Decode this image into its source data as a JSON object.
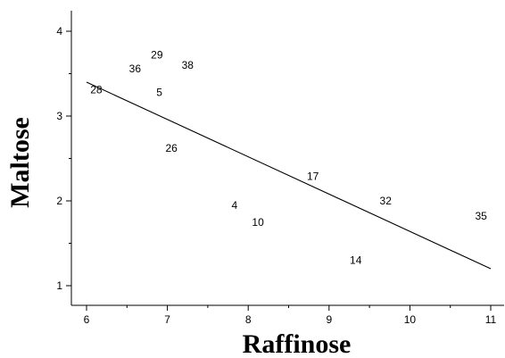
{
  "chart_data": {
    "type": "scatter",
    "title": "",
    "xlabel": "Raffinose",
    "ylabel": "Maltose",
    "xlim": [
      5.75,
      11.2
    ],
    "ylim": [
      0.75,
      4.25
    ],
    "xticks": [
      6,
      7,
      8,
      9,
      10,
      11
    ],
    "yticks": [
      1,
      2,
      3,
      4
    ],
    "points": [
      {
        "label": "28",
        "x": 6.12,
        "y": 3.31
      },
      {
        "label": "36",
        "x": 6.6,
        "y": 3.56
      },
      {
        "label": "29",
        "x": 6.87,
        "y": 3.72
      },
      {
        "label": "5",
        "x": 6.9,
        "y": 3.28
      },
      {
        "label": "38",
        "x": 7.25,
        "y": 3.6
      },
      {
        "label": "26",
        "x": 7.05,
        "y": 2.62
      },
      {
        "label": "4",
        "x": 7.83,
        "y": 1.95
      },
      {
        "label": "10",
        "x": 8.12,
        "y": 1.75
      },
      {
        "label": "17",
        "x": 8.8,
        "y": 2.29
      },
      {
        "label": "32",
        "x": 9.7,
        "y": 2.0
      },
      {
        "label": "14",
        "x": 9.33,
        "y": 1.3
      },
      {
        "label": "35",
        "x": 10.88,
        "y": 1.82
      }
    ],
    "fit_line": {
      "x": [
        6.0,
        11.0
      ],
      "y": [
        3.4,
        1.2
      ]
    },
    "grid": false,
    "legend": "none"
  }
}
